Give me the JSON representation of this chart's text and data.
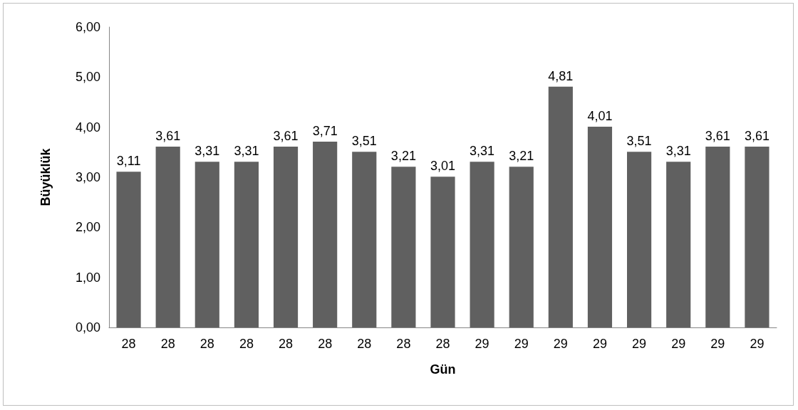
{
  "chart_data": {
    "type": "bar",
    "xlabel": "Gün",
    "ylabel": "Büyüklük",
    "categories": [
      "28",
      "28",
      "28",
      "28",
      "28",
      "28",
      "28",
      "28",
      "28",
      "29",
      "29",
      "29",
      "29",
      "29",
      "29",
      "29",
      "29"
    ],
    "values": [
      3.11,
      3.61,
      3.31,
      3.31,
      3.61,
      3.71,
      3.51,
      3.21,
      3.01,
      3.31,
      3.21,
      4.81,
      4.01,
      3.51,
      3.31,
      3.61,
      3.61
    ],
    "value_labels": [
      "3,11",
      "3,61",
      "3,31",
      "3,31",
      "3,61",
      "3,71",
      "3,51",
      "3,21",
      "3,01",
      "3,31",
      "3,21",
      "4,81",
      "4,01",
      "3,51",
      "3,31",
      "3,61",
      "3,61"
    ],
    "color": "#606060",
    "ylim": [
      0,
      6
    ],
    "yticks": [
      {
        "value": 0,
        "label": "0,00"
      },
      {
        "value": 1,
        "label": "1,00"
      },
      {
        "value": 2,
        "label": "2,00"
      },
      {
        "value": 3,
        "label": "3,00"
      },
      {
        "value": 4,
        "label": "4,00"
      },
      {
        "value": 5,
        "label": "5,00"
      },
      {
        "value": 6,
        "label": "6,00"
      }
    ],
    "grid": false
  }
}
